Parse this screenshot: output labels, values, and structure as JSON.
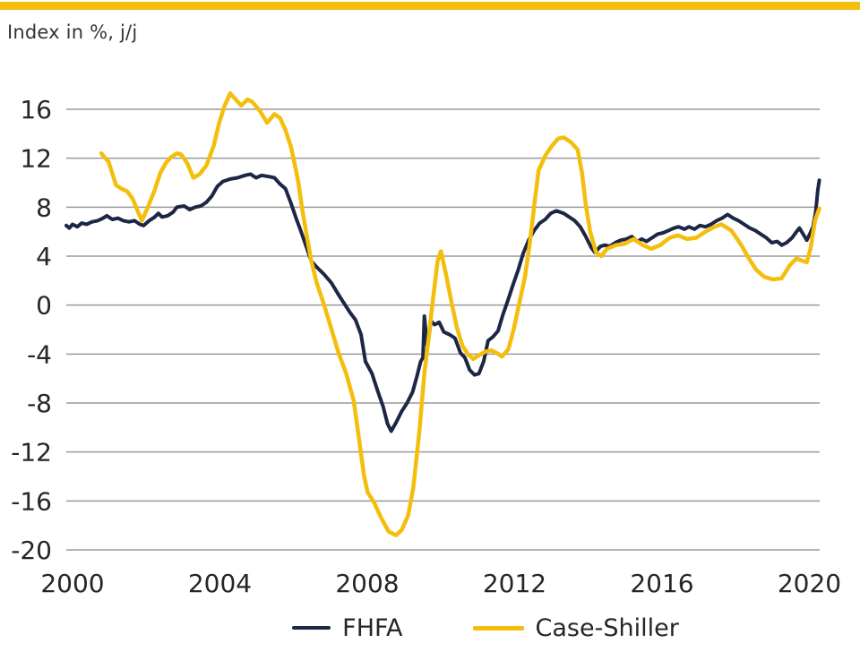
{
  "title": "Index in %, j/j",
  "accent_bar_color": "#F4BE0C",
  "colors": {
    "fhfa_line": "#1C2645",
    "case_shiller_line": "#F4BE0C",
    "gridline": "#9A9A9A",
    "tick_text": "#262626"
  },
  "legend": {
    "items": [
      {
        "label": "FHFA",
        "color": "#1C2645",
        "swatch_w": 43,
        "swatch_h": 4
      },
      {
        "label": "Case-Shiller",
        "color": "#F4BE0C",
        "swatch_w": 57,
        "swatch_h": 5
      }
    ]
  },
  "chart_data": {
    "type": "line",
    "title": "Index in %, j/j",
    "xlabel": "",
    "ylabel": "Index in %, year-over-year",
    "grid": true,
    "legend_position": "bottom",
    "x_axis": {
      "range": [
        2000,
        2020.45
      ],
      "ticks": [
        2000,
        2004,
        2008,
        2012,
        2016,
        2020
      ]
    },
    "y_axis": {
      "range": [
        -20,
        16
      ],
      "ticks": [
        16,
        12,
        8,
        4,
        0,
        -4,
        -8,
        -12,
        -16,
        -20
      ]
    },
    "series": [
      {
        "name": "FHFA",
        "color": "#1C2645",
        "stroke_width": 4,
        "points": [
          [
            2000.0,
            6.5
          ],
          [
            2000.08,
            6.3
          ],
          [
            2000.17,
            6.6
          ],
          [
            2000.3,
            6.4
          ],
          [
            2000.42,
            6.7
          ],
          [
            2000.55,
            6.6
          ],
          [
            2000.7,
            6.8
          ],
          [
            2000.85,
            6.9
          ],
          [
            2001.0,
            7.1
          ],
          [
            2001.1,
            7.3
          ],
          [
            2001.25,
            7.0
          ],
          [
            2001.4,
            7.1
          ],
          [
            2001.55,
            6.9
          ],
          [
            2001.7,
            6.8
          ],
          [
            2001.85,
            6.9
          ],
          [
            2002.0,
            6.6
          ],
          [
            2002.1,
            6.5
          ],
          [
            2002.25,
            6.9
          ],
          [
            2002.4,
            7.2
          ],
          [
            2002.5,
            7.5
          ],
          [
            2002.6,
            7.2
          ],
          [
            2002.75,
            7.3
          ],
          [
            2002.9,
            7.6
          ],
          [
            2003.0,
            8.0
          ],
          [
            2003.2,
            8.1
          ],
          [
            2003.35,
            7.8
          ],
          [
            2003.5,
            8.0
          ],
          [
            2003.65,
            8.1
          ],
          [
            2003.8,
            8.4
          ],
          [
            2003.95,
            8.9
          ],
          [
            2004.1,
            9.7
          ],
          [
            2004.25,
            10.1
          ],
          [
            2004.45,
            10.3
          ],
          [
            2004.65,
            10.4
          ],
          [
            2004.85,
            10.6
          ],
          [
            2005.0,
            10.7
          ],
          [
            2005.15,
            10.4
          ],
          [
            2005.3,
            10.6
          ],
          [
            2005.5,
            10.5
          ],
          [
            2005.65,
            10.4
          ],
          [
            2005.8,
            9.9
          ],
          [
            2005.95,
            9.5
          ],
          [
            2006.1,
            8.3
          ],
          [
            2006.25,
            7.0
          ],
          [
            2006.35,
            6.2
          ],
          [
            2006.5,
            4.9
          ],
          [
            2006.65,
            3.6
          ],
          [
            2006.8,
            3.1
          ],
          [
            2007.0,
            2.5
          ],
          [
            2007.2,
            1.8
          ],
          [
            2007.4,
            0.8
          ],
          [
            2007.55,
            0.1
          ],
          [
            2007.7,
            -0.6
          ],
          [
            2007.85,
            -1.2
          ],
          [
            2008.0,
            -2.4
          ],
          [
            2008.12,
            -4.6
          ],
          [
            2008.3,
            -5.6
          ],
          [
            2008.45,
            -7.0
          ],
          [
            2008.6,
            -8.3
          ],
          [
            2008.72,
            -9.7
          ],
          [
            2008.82,
            -10.3
          ],
          [
            2008.95,
            -9.6
          ],
          [
            2009.1,
            -8.7
          ],
          [
            2009.25,
            -8.0
          ],
          [
            2009.4,
            -7.1
          ],
          [
            2009.52,
            -5.8
          ],
          [
            2009.62,
            -4.6
          ],
          [
            2009.68,
            -4.3
          ],
          [
            2009.72,
            -0.9
          ],
          [
            2009.8,
            -3.5
          ],
          [
            2009.9,
            -1.3
          ],
          [
            2010.0,
            -1.6
          ],
          [
            2010.12,
            -1.4
          ],
          [
            2010.25,
            -2.2
          ],
          [
            2010.4,
            -2.4
          ],
          [
            2010.55,
            -2.7
          ],
          [
            2010.7,
            -3.9
          ],
          [
            2010.82,
            -4.3
          ],
          [
            2010.95,
            -5.3
          ],
          [
            2011.08,
            -5.7
          ],
          [
            2011.2,
            -5.6
          ],
          [
            2011.33,
            -4.6
          ],
          [
            2011.45,
            -2.9
          ],
          [
            2011.58,
            -2.6
          ],
          [
            2011.72,
            -2.1
          ],
          [
            2011.85,
            -0.8
          ],
          [
            2012.0,
            0.5
          ],
          [
            2012.12,
            1.6
          ],
          [
            2012.27,
            2.9
          ],
          [
            2012.4,
            4.2
          ],
          [
            2012.55,
            5.3
          ],
          [
            2012.7,
            6.1
          ],
          [
            2012.85,
            6.7
          ],
          [
            2013.0,
            7.0
          ],
          [
            2013.15,
            7.5
          ],
          [
            2013.3,
            7.7
          ],
          [
            2013.5,
            7.5
          ],
          [
            2013.65,
            7.2
          ],
          [
            2013.8,
            6.9
          ],
          [
            2013.95,
            6.4
          ],
          [
            2014.1,
            5.6
          ],
          [
            2014.25,
            4.7
          ],
          [
            2014.35,
            4.3
          ],
          [
            2014.5,
            4.8
          ],
          [
            2014.62,
            4.9
          ],
          [
            2014.75,
            4.8
          ],
          [
            2014.9,
            5.1
          ],
          [
            2015.05,
            5.3
          ],
          [
            2015.2,
            5.4
          ],
          [
            2015.35,
            5.6
          ],
          [
            2015.5,
            5.2
          ],
          [
            2015.62,
            5.4
          ],
          [
            2015.75,
            5.2
          ],
          [
            2015.9,
            5.5
          ],
          [
            2016.05,
            5.8
          ],
          [
            2016.2,
            5.9
          ],
          [
            2016.35,
            6.1
          ],
          [
            2016.5,
            6.3
          ],
          [
            2016.62,
            6.4
          ],
          [
            2016.78,
            6.2
          ],
          [
            2016.9,
            6.4
          ],
          [
            2017.05,
            6.2
          ],
          [
            2017.2,
            6.5
          ],
          [
            2017.35,
            6.4
          ],
          [
            2017.5,
            6.6
          ],
          [
            2017.65,
            6.9
          ],
          [
            2017.8,
            7.1
          ],
          [
            2017.95,
            7.4
          ],
          [
            2018.1,
            7.1
          ],
          [
            2018.25,
            6.9
          ],
          [
            2018.4,
            6.6
          ],
          [
            2018.55,
            6.3
          ],
          [
            2018.7,
            6.1
          ],
          [
            2018.85,
            5.8
          ],
          [
            2019.0,
            5.5
          ],
          [
            2019.15,
            5.1
          ],
          [
            2019.3,
            5.2
          ],
          [
            2019.42,
            4.9
          ],
          [
            2019.55,
            5.1
          ],
          [
            2019.7,
            5.5
          ],
          [
            2019.82,
            6.0
          ],
          [
            2019.9,
            6.3
          ],
          [
            2020.0,
            5.8
          ],
          [
            2020.1,
            5.3
          ],
          [
            2020.18,
            5.8
          ],
          [
            2020.27,
            6.4
          ],
          [
            2020.34,
            7.6
          ],
          [
            2020.4,
            9.4
          ],
          [
            2020.44,
            10.2
          ]
        ]
      },
      {
        "name": "Case-Shiller",
        "color": "#F4BE0C",
        "stroke_width": 4.5,
        "points": [
          [
            2000.95,
            12.4
          ],
          [
            2001.15,
            11.7
          ],
          [
            2001.35,
            9.8
          ],
          [
            2001.5,
            9.5
          ],
          [
            2001.65,
            9.3
          ],
          [
            2001.8,
            8.7
          ],
          [
            2001.95,
            7.6
          ],
          [
            2002.05,
            6.9
          ],
          [
            2002.2,
            7.9
          ],
          [
            2002.4,
            9.4
          ],
          [
            2002.55,
            10.8
          ],
          [
            2002.7,
            11.6
          ],
          [
            2002.85,
            12.1
          ],
          [
            2003.0,
            12.4
          ],
          [
            2003.12,
            12.3
          ],
          [
            2003.28,
            11.6
          ],
          [
            2003.45,
            10.4
          ],
          [
            2003.62,
            10.7
          ],
          [
            2003.8,
            11.4
          ],
          [
            2004.0,
            13.0
          ],
          [
            2004.15,
            14.9
          ],
          [
            2004.3,
            16.3
          ],
          [
            2004.45,
            17.3
          ],
          [
            2004.6,
            16.8
          ],
          [
            2004.75,
            16.3
          ],
          [
            2004.92,
            16.8
          ],
          [
            2005.05,
            16.6
          ],
          [
            2005.25,
            15.9
          ],
          [
            2005.45,
            14.9
          ],
          [
            2005.65,
            15.6
          ],
          [
            2005.8,
            15.3
          ],
          [
            2005.95,
            14.3
          ],
          [
            2006.1,
            12.9
          ],
          [
            2006.2,
            11.5
          ],
          [
            2006.3,
            10.0
          ],
          [
            2006.4,
            7.9
          ],
          [
            2006.52,
            5.8
          ],
          [
            2006.65,
            3.6
          ],
          [
            2006.8,
            1.8
          ],
          [
            2007.0,
            0.0
          ],
          [
            2007.2,
            -2.0
          ],
          [
            2007.4,
            -4.0
          ],
          [
            2007.6,
            -5.6
          ],
          [
            2007.8,
            -7.8
          ],
          [
            2007.95,
            -11.0
          ],
          [
            2008.08,
            -13.9
          ],
          [
            2008.18,
            -15.3
          ],
          [
            2008.35,
            -16.1
          ],
          [
            2008.55,
            -17.4
          ],
          [
            2008.75,
            -18.5
          ],
          [
            2008.95,
            -18.8
          ],
          [
            2009.1,
            -18.4
          ],
          [
            2009.28,
            -17.2
          ],
          [
            2009.42,
            -14.9
          ],
          [
            2009.58,
            -10.4
          ],
          [
            2009.72,
            -5.6
          ],
          [
            2009.83,
            -2.8
          ],
          [
            2009.95,
            0.4
          ],
          [
            2010.08,
            3.6
          ],
          [
            2010.17,
            4.4
          ],
          [
            2010.3,
            2.6
          ],
          [
            2010.45,
            0.3
          ],
          [
            2010.6,
            -1.8
          ],
          [
            2010.75,
            -3.3
          ],
          [
            2010.9,
            -4.0
          ],
          [
            2011.05,
            -4.4
          ],
          [
            2011.2,
            -4.1
          ],
          [
            2011.38,
            -3.8
          ],
          [
            2011.53,
            -3.7
          ],
          [
            2011.68,
            -3.9
          ],
          [
            2011.83,
            -4.2
          ],
          [
            2012.0,
            -3.6
          ],
          [
            2012.15,
            -1.9
          ],
          [
            2012.3,
            0.2
          ],
          [
            2012.45,
            2.3
          ],
          [
            2012.58,
            5.0
          ],
          [
            2012.7,
            8.1
          ],
          [
            2012.82,
            11.0
          ],
          [
            2013.0,
            12.2
          ],
          [
            2013.18,
            13.0
          ],
          [
            2013.35,
            13.6
          ],
          [
            2013.5,
            13.7
          ],
          [
            2013.7,
            13.3
          ],
          [
            2013.88,
            12.7
          ],
          [
            2014.0,
            10.8
          ],
          [
            2014.1,
            8.2
          ],
          [
            2014.22,
            6.0
          ],
          [
            2014.38,
            4.3
          ],
          [
            2014.52,
            4.0
          ],
          [
            2014.68,
            4.6
          ],
          [
            2014.92,
            4.9
          ],
          [
            2015.15,
            5.0
          ],
          [
            2015.4,
            5.4
          ],
          [
            2015.65,
            4.9
          ],
          [
            2015.88,
            4.6
          ],
          [
            2016.12,
            4.9
          ],
          [
            2016.38,
            5.5
          ],
          [
            2016.6,
            5.7
          ],
          [
            2016.85,
            5.4
          ],
          [
            2017.1,
            5.5
          ],
          [
            2017.35,
            6.0
          ],
          [
            2017.6,
            6.4
          ],
          [
            2017.78,
            6.6
          ],
          [
            2018.05,
            6.1
          ],
          [
            2018.3,
            5.0
          ],
          [
            2018.55,
            3.7
          ],
          [
            2018.72,
            2.9
          ],
          [
            2018.95,
            2.3
          ],
          [
            2019.18,
            2.1
          ],
          [
            2019.42,
            2.2
          ],
          [
            2019.65,
            3.3
          ],
          [
            2019.82,
            3.8
          ],
          [
            2020.0,
            3.6
          ],
          [
            2020.1,
            3.5
          ],
          [
            2020.2,
            4.6
          ],
          [
            2020.33,
            7.0
          ],
          [
            2020.44,
            7.9
          ]
        ]
      }
    ]
  }
}
